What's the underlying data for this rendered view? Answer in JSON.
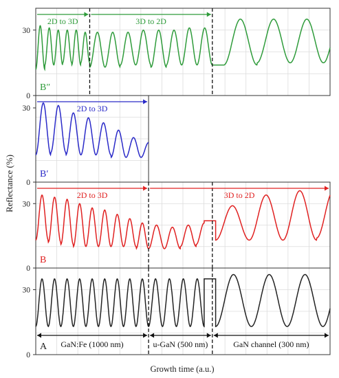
{
  "figure": {
    "ylabel": "Reflectance (%)",
    "xlabel": "Growth time (a.u.)"
  },
  "chart_data": [
    {
      "type": "line",
      "panel_label": "B″",
      "color": "#2e9b3a",
      "ylim": [
        0,
        40
      ],
      "yticks": [
        0,
        30
      ],
      "x_range": [
        0,
        1800
      ],
      "grid": true,
      "boundaries": [
        330,
        1080
      ],
      "annotations": [
        {
          "text": "2D to 3D",
          "x_start": 0,
          "x_end": 330
        },
        {
          "text": "3D to 2D",
          "x_start": 330,
          "x_end": 1080
        }
      ],
      "segments": [
        {
          "shape": "osc",
          "x_start": 0,
          "x_end": 330,
          "cycles": 6,
          "peaks": [
            32,
            31,
            30,
            30,
            30,
            29
          ],
          "troughs": [
            12,
            14,
            14,
            15,
            14,
            15
          ]
        },
        {
          "shape": "osc",
          "x_start": 330,
          "x_end": 1080,
          "cycles": 8,
          "peaks": [
            29,
            29,
            29,
            30,
            30,
            30,
            31,
            31
          ],
          "troughs": [
            13,
            13,
            14,
            14,
            13,
            14,
            14,
            14
          ]
        },
        {
          "shape": "flat",
          "x_start": 1080,
          "x_end": 1150,
          "y": 14
        },
        {
          "shape": "osc",
          "x_start": 1150,
          "x_end": 1800,
          "cycles": 3.2,
          "peaks": [
            35,
            35,
            35,
            35
          ],
          "troughs": [
            14,
            15,
            15,
            15
          ]
        }
      ]
    },
    {
      "type": "line",
      "panel_label": "B′",
      "color": "#2929c8",
      "ylim": [
        0,
        35
      ],
      "yticks": [
        0,
        30
      ],
      "x_range": [
        0,
        690
      ],
      "grid": true,
      "boundaries": [],
      "annotations": [
        {
          "text": "2D to 3D",
          "x_start": 0,
          "x_end": 690
        }
      ],
      "segments": [
        {
          "shape": "osc",
          "x_start": 0,
          "x_end": 690,
          "cycles": 7.5,
          "peaks": [
            32,
            31,
            28,
            26,
            24,
            21,
            18,
            16
          ],
          "troughs": [
            11,
            12,
            11,
            11,
            11,
            10,
            10,
            10
          ]
        }
      ]
    },
    {
      "type": "line",
      "panel_label": "B",
      "color": "#e02020",
      "ylim": [
        0,
        40
      ],
      "yticks": [
        0,
        30
      ],
      "x_range": [
        0,
        1800
      ],
      "grid": true,
      "boundaries": [
        690,
        1080
      ],
      "annotations": [
        {
          "text": "2D to 3D",
          "x_start": 0,
          "x_end": 690
        },
        {
          "text": "3D to 2D",
          "x_start": 690,
          "x_end": 1800
        }
      ],
      "segments": [
        {
          "shape": "osc",
          "x_start": 0,
          "x_end": 690,
          "cycles": 9,
          "peaks": [
            34,
            33,
            32,
            30,
            28,
            27,
            25,
            23,
            21
          ],
          "troughs": [
            13,
            12,
            11,
            10,
            10,
            10,
            10,
            10,
            9
          ]
        },
        {
          "shape": "osc",
          "x_start": 690,
          "x_end": 1030,
          "cycles": 3.5,
          "peaks": [
            20,
            19,
            20,
            21
          ],
          "troughs": [
            9,
            9,
            10,
            11
          ]
        },
        {
          "shape": "flat",
          "x_start": 1030,
          "x_end": 1100,
          "y": 22
        },
        {
          "shape": "osc",
          "x_start": 1100,
          "x_end": 1800,
          "cycles": 3.4,
          "peaks": [
            29,
            34,
            36,
            36
          ],
          "troughs": [
            13,
            13,
            13,
            14
          ]
        }
      ]
    },
    {
      "type": "line",
      "panel_label": "A",
      "color": "#222222",
      "ylim": [
        0,
        40
      ],
      "yticks": [
        0,
        30
      ],
      "x_range": [
        0,
        1800
      ],
      "grid": true,
      "boundaries": [
        690,
        1080
      ],
      "annotations": [
        {
          "text": "GaN:Fe (1000 nm)",
          "x_start": 0,
          "x_end": 690,
          "position": "bottom"
        },
        {
          "text": "u-GaN (500 nm)",
          "x_start": 690,
          "x_end": 1080,
          "position": "bottom"
        },
        {
          "text": "GaN channel (300 nm)",
          "x_start": 1080,
          "x_end": 1800,
          "position": "bottom"
        }
      ],
      "segments": [
        {
          "shape": "osc",
          "x_start": 0,
          "x_end": 690,
          "cycles": 9,
          "peaks": [
            35,
            35,
            35,
            35,
            35,
            35,
            35,
            35,
            35
          ],
          "troughs": [
            13,
            13,
            13,
            13,
            13,
            13,
            13,
            13,
            13
          ]
        },
        {
          "shape": "osc",
          "x_start": 690,
          "x_end": 1030,
          "cycles": 4,
          "peaks": [
            35,
            35,
            35,
            35
          ],
          "troughs": [
            13,
            13,
            13,
            13
          ]
        },
        {
          "shape": "flat",
          "x_start": 1030,
          "x_end": 1100,
          "y": 35
        },
        {
          "shape": "osc",
          "x_start": 1100,
          "x_end": 1800,
          "cycles": 3.2,
          "peaks": [
            37,
            37,
            37,
            37
          ],
          "troughs": [
            13,
            13,
            13,
            13
          ]
        }
      ]
    }
  ]
}
